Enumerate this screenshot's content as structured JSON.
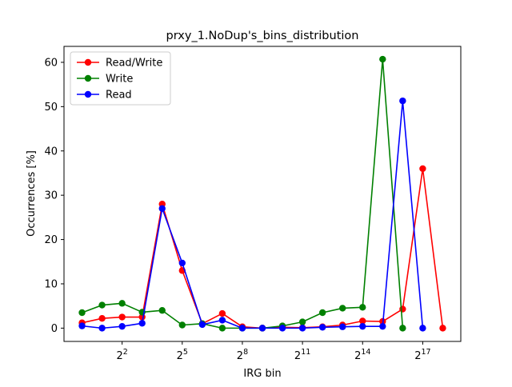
{
  "chart_data": {
    "type": "line",
    "title": "prxy_1.NoDup's_bins_distribution",
    "xlabel": "IRG bin",
    "ylabel": "Occurrences [%]",
    "x_scale": "log2",
    "x": [
      0,
      1,
      2,
      3,
      4,
      5,
      6,
      7,
      8,
      9,
      10,
      11,
      12,
      13,
      14,
      15,
      16,
      17,
      18
    ],
    "xlim": [
      -0.9,
      18.9
    ],
    "ylim": [
      -3.0,
      63.6
    ],
    "grid": false,
    "legend_position": "upper left",
    "x_ticks": [
      {
        "pos": 2,
        "base": "2",
        "exp": "2"
      },
      {
        "pos": 5,
        "base": "2",
        "exp": "5"
      },
      {
        "pos": 8,
        "base": "2",
        "exp": "8"
      },
      {
        "pos": 11,
        "base": "2",
        "exp": "11"
      },
      {
        "pos": 14,
        "base": "2",
        "exp": "14"
      },
      {
        "pos": 17,
        "base": "2",
        "exp": "17"
      }
    ],
    "y_ticks": [
      0,
      10,
      20,
      30,
      40,
      50,
      60
    ],
    "series": [
      {
        "name": "Read/Write",
        "color": "#ff0000",
        "x": [
          0,
          1,
          2,
          3,
          4,
          5,
          6,
          7,
          8,
          9,
          10,
          11,
          12,
          13,
          14,
          15,
          16,
          17,
          18
        ],
        "values": [
          1.2,
          2.2,
          2.5,
          2.5,
          28.0,
          13.0,
          1.0,
          3.3,
          0.3,
          0.0,
          0.2,
          0.1,
          0.3,
          0.7,
          1.6,
          1.5,
          4.3,
          36.0,
          0.0
        ]
      },
      {
        "name": "Write",
        "color": "#008000",
        "x": [
          0,
          1,
          2,
          3,
          4,
          5,
          6,
          7,
          8,
          9,
          10,
          11,
          12,
          13,
          14,
          15,
          16
        ],
        "values": [
          3.5,
          5.2,
          5.6,
          3.6,
          4.0,
          0.7,
          1.0,
          0.0,
          0.0,
          0.0,
          0.5,
          1.4,
          3.5,
          4.5,
          4.7,
          60.7,
          0.0
        ]
      },
      {
        "name": "Read",
        "color": "#0000ff",
        "x": [
          0,
          1,
          2,
          3,
          4,
          5,
          6,
          7,
          8,
          9,
          10,
          11,
          12,
          13,
          14,
          15,
          16,
          17
        ],
        "values": [
          0.5,
          0.0,
          0.4,
          1.1,
          27.0,
          14.7,
          0.8,
          1.8,
          0.0,
          0.0,
          0.0,
          0.0,
          0.2,
          0.3,
          0.4,
          0.4,
          51.3,
          0.0
        ]
      }
    ]
  }
}
